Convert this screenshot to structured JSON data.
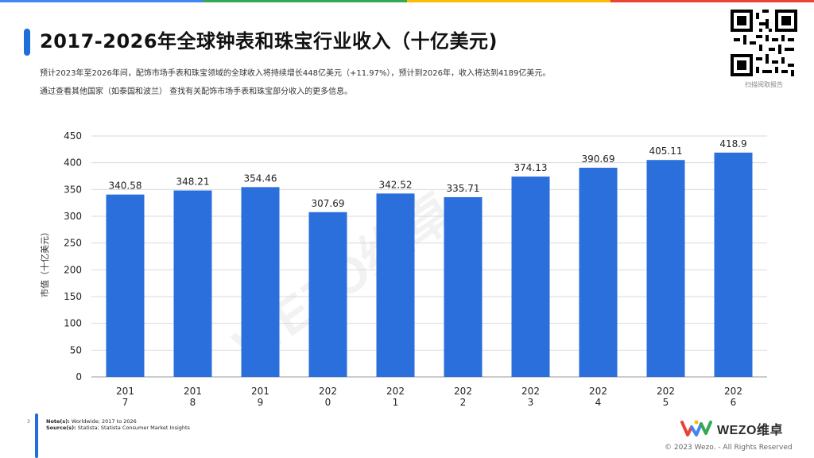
{
  "header": {
    "title": "2017-2026年全球钟表和珠宝行业收入（十亿美元)",
    "desc_line1": "预计2023年至2026年间，配饰市场手表和珠宝领域的全球收入将持续增长448亿美元（+11.97%），预计到2026年，收入将达到4189亿美元。",
    "desc_line2": "通过查看其他国家（如泰国和波兰） 查找有关配饰市场手表和珠宝部分收入的更多信息。"
  },
  "qr": {
    "caption": "扫描阅取报告"
  },
  "watermark": "WEZO维卓",
  "colors": {
    "bar": "#2a6fdb",
    "accent": "#1e6fd9",
    "grid": "#d9d9d9",
    "topbar": [
      "#4285f4",
      "#34a853",
      "#fbbc05",
      "#ea4335"
    ]
  },
  "chart_data": {
    "type": "bar",
    "categories": [
      "2017",
      "2018",
      "2019",
      "2020",
      "2021",
      "2022",
      "2023",
      "2024",
      "2025",
      "2026"
    ],
    "tick_labels": [
      [
        "201",
        "7"
      ],
      [
        "201",
        "8"
      ],
      [
        "201",
        "9"
      ],
      [
        "202",
        "0"
      ],
      [
        "202",
        "1"
      ],
      [
        "202",
        "2"
      ],
      [
        "202",
        "3"
      ],
      [
        "202",
        "4"
      ],
      [
        "202",
        "5"
      ],
      [
        "202",
        "6"
      ]
    ],
    "values": [
      340.58,
      348.21,
      354.46,
      307.69,
      342.52,
      335.71,
      374.13,
      390.69,
      405.11,
      418.9
    ],
    "data_labels": [
      "340.58",
      "348.21",
      "354.46",
      "307.69",
      "342.52",
      "335.71",
      "374.13",
      "390.69",
      "405.11",
      "418.9"
    ],
    "ylabel": "市值（十亿美元）",
    "ylim": [
      0,
      450
    ],
    "yticks": [
      0,
      50,
      100,
      150,
      200,
      250,
      300,
      350,
      400,
      450
    ],
    "grid": true
  },
  "footer": {
    "page": "3",
    "note_label": "Note(s):",
    "note_text": " Worldwide; 2017 to 2026",
    "source_label": "Source(s):",
    "source_text": " Statista; Statista Consumer Market Insights",
    "logo_text": "WEZO维卓",
    "copyright": "© 2023 Wezo. - All Rights Reserved"
  }
}
